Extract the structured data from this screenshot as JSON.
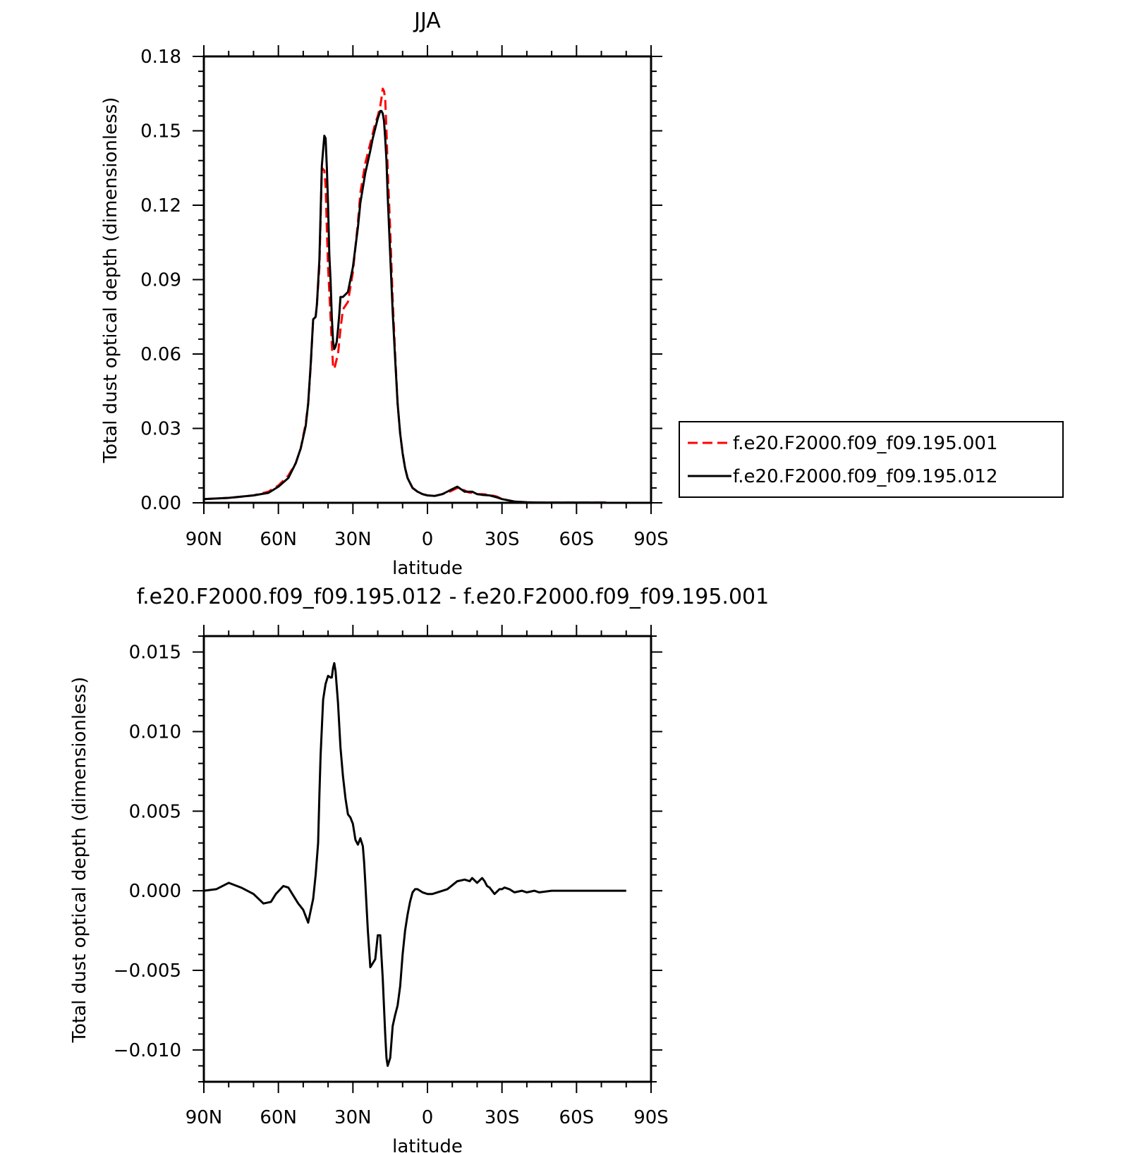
{
  "chart_data": [
    {
      "type": "line",
      "title": "JJA",
      "xlabel": "latitude",
      "ylabel": "Total dust optical depth (dimensionless)",
      "xlim": [
        90,
        -90
      ],
      "ylim": [
        0,
        0.18
      ],
      "x_ticks": [
        90,
        60,
        30,
        0,
        -30,
        -60,
        -90
      ],
      "x_tick_labels": [
        "90N",
        "60N",
        "30N",
        "0",
        "30S",
        "60S",
        "90S"
      ],
      "y_ticks": [
        0,
        0.03,
        0.06,
        0.09,
        0.12,
        0.15,
        0.18
      ],
      "y_tick_labels": [
        "0.00",
        "0.03",
        "0.06",
        "0.09",
        "0.12",
        "0.15",
        "0.18"
      ],
      "legend_position": "right",
      "series": [
        {
          "name": "f.e20.F2000.f09_f09.195.001",
          "color": "#ff0000",
          "dash": "dashed",
          "x": [
            90,
            80,
            70,
            64,
            60,
            56,
            53,
            51,
            49,
            48,
            47,
            46,
            45,
            44.5,
            43.5,
            42.5,
            41.5,
            41,
            40.5,
            40,
            39.5,
            39,
            38.5,
            38,
            37.5,
            37,
            36.5,
            36,
            35.5,
            35,
            34,
            32,
            30,
            28,
            27,
            25,
            23,
            22,
            21,
            20,
            19,
            18.5,
            18,
            17.5,
            17,
            16.5,
            16,
            15,
            14,
            13,
            12,
            11,
            10,
            9,
            8,
            7,
            6,
            4,
            2,
            0,
            -3,
            -6,
            -9,
            -12,
            -15,
            -16.5,
            -18,
            -20,
            -22,
            -25,
            -28,
            -30,
            -35,
            -40,
            -45,
            -50,
            -55,
            -60,
            -65,
            -72
          ],
          "y": [
            0.0015,
            0.002,
            0.003,
            0.0045,
            0.007,
            0.011,
            0.016,
            0.022,
            0.032,
            0.04,
            0.055,
            0.074,
            0.075,
            0.08,
            0.095,
            0.135,
            0.134,
            0.128,
            0.11,
            0.095,
            0.085,
            0.075,
            0.064,
            0.055,
            0.054,
            0.056,
            0.058,
            0.06,
            0.065,
            0.07,
            0.078,
            0.081,
            0.093,
            0.113,
            0.125,
            0.137,
            0.145,
            0.149,
            0.153,
            0.156,
            0.16,
            0.163,
            0.167,
            0.166,
            0.163,
            0.15,
            0.135,
            0.11,
            0.082,
            0.06,
            0.04,
            0.028,
            0.02,
            0.014,
            0.01,
            0.008,
            0.006,
            0.0045,
            0.0035,
            0.003,
            0.0028,
            0.0035,
            0.0045,
            0.006,
            0.005,
            0.0042,
            0.004,
            0.0035,
            0.0035,
            0.0032,
            0.0025,
            0.0015,
            0.0005,
            0.0002,
            0.0001,
            0.0001,
            0.0001,
            0.0001,
            0.0001,
            0.0001
          ]
        },
        {
          "name": "f.e20.F2000.f09_f09.195.012",
          "color": "#000000",
          "dash": "solid",
          "x": [
            90,
            80,
            70,
            64,
            60,
            56,
            53,
            51,
            49,
            48,
            47,
            46,
            45,
            44.5,
            43.5,
            42.5,
            41.5,
            41,
            40.5,
            40,
            39.5,
            39,
            38.5,
            38,
            37.5,
            37,
            36.5,
            36,
            35.5,
            35,
            34,
            32,
            30,
            28,
            27,
            25,
            23,
            22,
            21,
            20,
            19,
            18.5,
            18,
            17.5,
            17,
            16.5,
            16,
            15,
            14,
            13,
            12,
            11,
            10,
            9,
            8,
            7,
            6,
            4,
            2,
            0,
            -3,
            -6,
            -9,
            -12,
            -15,
            -16.5,
            -18,
            -20,
            -22,
            -25,
            -28,
            -30,
            -35,
            -40,
            -45,
            -50,
            -55,
            -60,
            -65,
            -72
          ],
          "y": [
            0.0015,
            0.002,
            0.003,
            0.004,
            0.0065,
            0.01,
            0.016,
            0.022,
            0.031,
            0.04,
            0.056,
            0.074,
            0.075,
            0.08,
            0.098,
            0.136,
            0.148,
            0.147,
            0.135,
            0.12,
            0.1,
            0.09,
            0.075,
            0.065,
            0.062,
            0.063,
            0.065,
            0.07,
            0.076,
            0.083,
            0.083,
            0.085,
            0.095,
            0.111,
            0.121,
            0.133,
            0.142,
            0.147,
            0.151,
            0.155,
            0.158,
            0.158,
            0.157,
            0.154,
            0.147,
            0.138,
            0.124,
            0.1,
            0.077,
            0.058,
            0.04,
            0.028,
            0.02,
            0.014,
            0.01,
            0.008,
            0.006,
            0.0045,
            0.0035,
            0.003,
            0.0028,
            0.0035,
            0.005,
            0.0065,
            0.0045,
            0.0045,
            0.0045,
            0.0035,
            0.0032,
            0.003,
            0.0022,
            0.0015,
            0.0005,
            0.0002,
            0.0001,
            0.0001,
            0.0001,
            0.0001,
            0.0001,
            0.0001
          ]
        }
      ]
    },
    {
      "type": "line",
      "title": "f.e20.F2000.f09_f09.195.012 - f.e20.F2000.f09_f09.195.001",
      "xlabel": "latitude",
      "ylabel": "Total dust optical depth (dimensionless)",
      "xlim": [
        90,
        -90
      ],
      "ylim": [
        -0.012,
        0.016
      ],
      "x_ticks": [
        90,
        60,
        30,
        0,
        -30,
        -60,
        -90
      ],
      "x_tick_labels": [
        "90N",
        "60N",
        "30N",
        "0",
        "30S",
        "60S",
        "90S"
      ],
      "y_ticks": [
        -0.01,
        -0.005,
        0,
        0.005,
        0.01,
        0.015
      ],
      "y_tick_labels": [
        "−0.010",
        "−0.005",
        "0.000",
        "0.005",
        "0.010",
        "0.015"
      ],
      "series": [
        {
          "color": "#000000",
          "dash": "solid",
          "x": [
            90,
            85,
            80,
            75,
            70,
            66,
            63,
            61,
            58,
            56,
            54,
            52,
            50,
            48,
            46,
            45,
            44,
            43.5,
            43,
            42,
            41.5,
            41,
            40,
            39,
            38.5,
            38,
            37.5,
            37,
            36,
            35,
            34,
            33,
            32,
            31,
            30,
            29,
            28,
            27,
            26,
            25.5,
            25,
            24,
            23,
            21,
            20,
            19.5,
            19,
            18,
            17,
            16.5,
            16,
            15,
            14,
            13,
            12,
            11,
            10,
            9,
            8,
            7,
            6,
            5,
            4,
            2,
            0,
            -2,
            -4,
            -8,
            -12,
            -15,
            -17,
            -18,
            -20,
            -22,
            -23,
            -24,
            -25,
            -27,
            -29,
            -30,
            -31,
            -33,
            -35,
            -38,
            -40,
            -43,
            -45,
            -50,
            -60,
            -70,
            -80
          ],
          "y": [
            0,
            0.0001,
            0.0005,
            0.0002,
            -0.0002,
            -0.0008,
            -0.0007,
            -0.0002,
            0.0003,
            0.0002,
            -0.0003,
            -0.0008,
            -0.0012,
            -0.002,
            -0.0005,
            0.001,
            0.003,
            0.006,
            0.0085,
            0.012,
            0.0125,
            0.013,
            0.0135,
            0.0134,
            0.0134,
            0.014,
            0.0143,
            0.0138,
            0.0118,
            0.009,
            0.0072,
            0.0058,
            0.0048,
            0.0046,
            0.0042,
            0.0032,
            0.0029,
            0.0033,
            0.0028,
            0.0018,
            0.0005,
            -0.0025,
            -0.0048,
            -0.0043,
            -0.0028,
            -0.0028,
            -0.0028,
            -0.0055,
            -0.009,
            -0.0105,
            -0.011,
            -0.0105,
            -0.0085,
            -0.0078,
            -0.0072,
            -0.006,
            -0.004,
            -0.0025,
            -0.0015,
            -0.0007,
            -0.0001,
            0.0001,
            0.0001,
            -0.0001,
            -0.0002,
            -0.0002,
            -0.0001,
            0.0001,
            0.0006,
            0.0007,
            0.0006,
            0.0008,
            0.0005,
            0.0008,
            0.0006,
            0.0003,
            0.0002,
            -0.0002,
            0.0001,
            0.0001,
            0.0002,
            0.0001,
            -0.0001,
            0,
            -0.0001,
            0,
            -0.0001,
            0,
            0,
            0,
            0
          ]
        }
      ]
    }
  ]
}
